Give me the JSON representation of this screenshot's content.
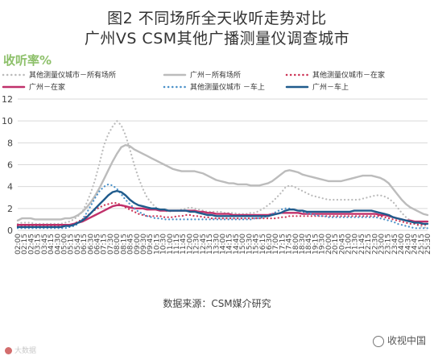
{
  "header": {
    "title_line1": "图2  不同场所全天收听走势对比",
    "title_line2": "广州VS  CSM其他广播测量仪调查城市"
  },
  "footer": {
    "source": "数据来源：CSM媒介研究",
    "watermark_left": "大数据",
    "watermark_right": "收视中国"
  },
  "chart_data": {
    "type": "line",
    "ylabel": "收听率%",
    "ylim": [
      0,
      12
    ],
    "yticks": [
      0,
      2,
      4,
      6,
      8,
      10,
      12
    ],
    "grid": true,
    "legend_position": "top",
    "x": [
      "02:00",
      "02:15",
      "02:30",
      "02:45",
      "03:00",
      "03:15",
      "03:30",
      "03:45",
      "04:00",
      "04:15",
      "04:30",
      "04:45",
      "05:00",
      "05:15",
      "05:30",
      "05:45",
      "06:00",
      "06:15",
      "06:30",
      "06:45",
      "07:00",
      "07:15",
      "07:30",
      "07:45",
      "08:00",
      "08:15",
      "08:30",
      "08:45",
      "09:00",
      "09:15",
      "09:30",
      "09:45",
      "10:00",
      "10:15",
      "10:30",
      "10:45",
      "11:00",
      "11:15",
      "11:30",
      "11:45",
      "12:00",
      "12:15",
      "12:30",
      "12:45",
      "13:00",
      "13:15",
      "13:30",
      "13:45",
      "14:00",
      "14:15",
      "14:30",
      "14:45",
      "15:00",
      "15:15",
      "15:30",
      "15:45",
      "16:00",
      "16:15",
      "16:30",
      "16:45",
      "17:00",
      "17:15",
      "17:30",
      "17:45",
      "18:00",
      "18:15",
      "18:30",
      "18:45",
      "19:00",
      "19:15",
      "19:30",
      "19:45",
      "20:00",
      "20:15",
      "20:30",
      "20:45",
      "21:00",
      "21:15",
      "21:30",
      "21:45",
      "22:00",
      "22:15",
      "22:30",
      "22:45",
      "23:00",
      "23:15",
      "23:30",
      "23:45",
      "24:00",
      "24:15",
      "24:30",
      "24:45",
      "25:00",
      "25:15",
      "25:30",
      "25:45"
    ],
    "x_tick_labels": [
      "02:00",
      "02:15",
      "02:45",
      "03:15",
      "03:45",
      "04:15",
      "04:30",
      "05:00",
      "05:15",
      "05:45",
      "06:15",
      "06:30",
      "06:45",
      "07:15",
      "07:30",
      "08:00",
      "08:15",
      "08:45",
      "09:00",
      "09:30",
      "09:45",
      "10:15",
      "10:30",
      "11:00",
      "11:15",
      "11:45",
      "12:00",
      "12:30",
      "12:45",
      "13:15",
      "13:30",
      "14:00",
      "14:15",
      "14:45",
      "15:00",
      "15:30",
      "15:45",
      "16:15",
      "16:30",
      "17:00",
      "17:15",
      "17:45",
      "18:00",
      "18:30",
      "18:45",
      "19:15",
      "19:30",
      "20:00",
      "20:15",
      "20:45",
      "21:00",
      "21:30",
      "21:45",
      "22:15",
      "22:30",
      "23:00",
      "23:15",
      "23:45",
      "24:00",
      "24:30",
      "24:45",
      "25:15",
      "25:30"
    ],
    "series": [
      {
        "name": "其他测量仪城市－所有场所",
        "color": "#bbbbbb",
        "style": "dotted",
        "values": [
          0.6,
          0.7,
          0.7,
          0.7,
          0.6,
          0.6,
          0.6,
          0.6,
          0.6,
          0.6,
          0.6,
          0.7,
          0.8,
          1.0,
          1.3,
          1.7,
          2.5,
          3.5,
          4.7,
          6.2,
          7.8,
          8.8,
          9.5,
          10.0,
          9.6,
          8.7,
          7.4,
          6.0,
          4.8,
          3.8,
          3.0,
          2.5,
          2.1,
          1.9,
          1.8,
          1.7,
          1.8,
          1.8,
          1.9,
          2.0,
          2.1,
          2.0,
          1.9,
          1.8,
          1.7,
          1.7,
          1.7,
          1.7,
          1.6,
          1.6,
          1.6,
          1.5,
          1.5,
          1.5,
          1.6,
          1.6,
          1.8,
          2.0,
          2.3,
          2.6,
          3.0,
          3.4,
          3.9,
          4.1,
          4.0,
          3.8,
          3.6,
          3.4,
          3.2,
          3.1,
          3.0,
          2.9,
          2.8,
          2.8,
          2.8,
          2.8,
          2.8,
          2.8,
          2.8,
          2.8,
          2.9,
          3.0,
          3.1,
          3.2,
          3.2,
          3.1,
          2.9,
          2.6,
          2.1,
          1.6,
          1.2,
          0.9,
          0.6,
          0.4,
          0.3,
          0.2
        ]
      },
      {
        "name": "广州－所有场所",
        "color": "#bcbcbc",
        "style": "solid",
        "values": [
          0.9,
          1.1,
          1.1,
          1.1,
          1.0,
          1.0,
          1.0,
          1.0,
          1.0,
          1.0,
          1.0,
          1.1,
          1.1,
          1.2,
          1.4,
          1.7,
          2.1,
          2.6,
          3.2,
          3.9,
          4.7,
          5.5,
          6.3,
          7.0,
          7.6,
          7.8,
          7.7,
          7.4,
          7.2,
          7.0,
          6.8,
          6.6,
          6.4,
          6.2,
          6.0,
          5.8,
          5.6,
          5.5,
          5.4,
          5.4,
          5.4,
          5.4,
          5.3,
          5.2,
          5.0,
          4.8,
          4.6,
          4.5,
          4.4,
          4.3,
          4.3,
          4.2,
          4.2,
          4.2,
          4.1,
          4.1,
          4.1,
          4.2,
          4.3,
          4.5,
          4.8,
          5.1,
          5.4,
          5.5,
          5.4,
          5.3,
          5.1,
          5.0,
          4.9,
          4.8,
          4.7,
          4.6,
          4.5,
          4.5,
          4.5,
          4.5,
          4.6,
          4.7,
          4.8,
          4.9,
          5.0,
          5.0,
          5.0,
          4.9,
          4.8,
          4.6,
          4.3,
          3.8,
          3.3,
          2.8,
          2.4,
          2.1,
          1.9,
          1.7,
          1.5,
          1.4
        ]
      },
      {
        "name": "其他测量仪城市－在家",
        "color": "#cc3355",
        "style": "dotted",
        "values": [
          0.4,
          0.4,
          0.4,
          0.4,
          0.4,
          0.4,
          0.4,
          0.4,
          0.4,
          0.4,
          0.4,
          0.4,
          0.5,
          0.6,
          0.8,
          1.0,
          1.3,
          1.6,
          1.9,
          2.1,
          2.3,
          2.4,
          2.5,
          2.5,
          2.3,
          2.1,
          1.9,
          1.7,
          1.5,
          1.4,
          1.3,
          1.3,
          1.3,
          1.3,
          1.2,
          1.2,
          1.2,
          1.3,
          1.3,
          1.4,
          1.4,
          1.3,
          1.3,
          1.2,
          1.2,
          1.1,
          1.1,
          1.1,
          1.1,
          1.1,
          1.1,
          1.1,
          1.1,
          1.1,
          1.1,
          1.1,
          1.1,
          1.1,
          1.1,
          1.1,
          1.1,
          1.2,
          1.2,
          1.3,
          1.3,
          1.3,
          1.3,
          1.3,
          1.3,
          1.3,
          1.3,
          1.3,
          1.3,
          1.3,
          1.3,
          1.3,
          1.3,
          1.3,
          1.3,
          1.3,
          1.3,
          1.3,
          1.3,
          1.3,
          1.3,
          1.2,
          1.1,
          1.0,
          0.9,
          0.8,
          0.7,
          0.6,
          0.6,
          0.5,
          0.5,
          0.5
        ]
      },
      {
        "name": "广州－在家",
        "color": "#c0306a",
        "style": "solid",
        "values": [
          0.5,
          0.5,
          0.5,
          0.5,
          0.5,
          0.5,
          0.5,
          0.5,
          0.5,
          0.5,
          0.5,
          0.5,
          0.5,
          0.6,
          0.7,
          0.8,
          1.0,
          1.2,
          1.4,
          1.6,
          1.8,
          2.0,
          2.2,
          2.3,
          2.3,
          2.2,
          2.1,
          2.0,
          2.0,
          2.0,
          1.9,
          1.9,
          1.9,
          1.8,
          1.8,
          1.8,
          1.8,
          1.8,
          1.8,
          1.8,
          1.8,
          1.8,
          1.7,
          1.7,
          1.6,
          1.6,
          1.5,
          1.5,
          1.5,
          1.5,
          1.4,
          1.4,
          1.4,
          1.4,
          1.4,
          1.4,
          1.4,
          1.4,
          1.4,
          1.5,
          1.5,
          1.6,
          1.6,
          1.6,
          1.6,
          1.6,
          1.5,
          1.5,
          1.5,
          1.5,
          1.5,
          1.5,
          1.5,
          1.5,
          1.5,
          1.5,
          1.5,
          1.5,
          1.5,
          1.5,
          1.5,
          1.5,
          1.5,
          1.5,
          1.4,
          1.4,
          1.3,
          1.2,
          1.1,
          1.0,
          0.9,
          0.9,
          0.8,
          0.8,
          0.8,
          0.8
        ]
      },
      {
        "name": "其他测量仪城市 －车上",
        "color": "#4a90c8",
        "style": "dotted",
        "values": [
          0.2,
          0.2,
          0.2,
          0.2,
          0.2,
          0.2,
          0.2,
          0.2,
          0.2,
          0.2,
          0.2,
          0.2,
          0.3,
          0.4,
          0.6,
          1.0,
          1.6,
          2.3,
          3.0,
          3.6,
          4.0,
          4.2,
          4.1,
          3.8,
          3.3,
          2.8,
          2.4,
          2.0,
          1.7,
          1.5,
          1.3,
          1.2,
          1.1,
          1.1,
          1.0,
          1.0,
          1.0,
          1.0,
          1.0,
          1.0,
          1.0,
          1.0,
          1.0,
          1.0,
          1.0,
          1.0,
          1.0,
          1.0,
          1.0,
          1.0,
          1.0,
          1.0,
          1.0,
          1.0,
          1.0,
          1.1,
          1.1,
          1.2,
          1.3,
          1.5,
          1.7,
          1.9,
          2.0,
          2.0,
          1.9,
          1.8,
          1.7,
          1.6,
          1.5,
          1.4,
          1.3,
          1.3,
          1.2,
          1.2,
          1.2,
          1.2,
          1.2,
          1.2,
          1.2,
          1.2,
          1.2,
          1.2,
          1.2,
          1.2,
          1.1,
          1.0,
          0.9,
          0.8,
          0.6,
          0.5,
          0.4,
          0.3,
          0.2,
          0.2,
          0.2,
          0.2
        ]
      },
      {
        "name": "广州－车上",
        "color": "#1f5b8c",
        "style": "solid",
        "values": [
          0.3,
          0.3,
          0.3,
          0.3,
          0.3,
          0.3,
          0.3,
          0.3,
          0.3,
          0.3,
          0.3,
          0.4,
          0.4,
          0.5,
          0.7,
          0.9,
          1.2,
          1.6,
          2.0,
          2.4,
          2.8,
          3.2,
          3.5,
          3.6,
          3.5,
          3.2,
          2.8,
          2.5,
          2.3,
          2.2,
          2.1,
          2.0,
          2.0,
          1.9,
          1.9,
          1.8,
          1.8,
          1.8,
          1.8,
          1.8,
          1.7,
          1.7,
          1.6,
          1.5,
          1.4,
          1.4,
          1.3,
          1.3,
          1.3,
          1.3,
          1.3,
          1.3,
          1.3,
          1.3,
          1.3,
          1.3,
          1.3,
          1.3,
          1.3,
          1.4,
          1.5,
          1.6,
          1.8,
          1.9,
          1.9,
          1.8,
          1.8,
          1.7,
          1.7,
          1.7,
          1.7,
          1.7,
          1.7,
          1.7,
          1.7,
          1.7,
          1.7,
          1.7,
          1.8,
          1.8,
          1.8,
          1.8,
          1.8,
          1.7,
          1.6,
          1.5,
          1.4,
          1.2,
          1.1,
          1.0,
          0.9,
          0.8,
          0.7,
          0.7,
          0.6,
          0.6
        ]
      }
    ]
  }
}
